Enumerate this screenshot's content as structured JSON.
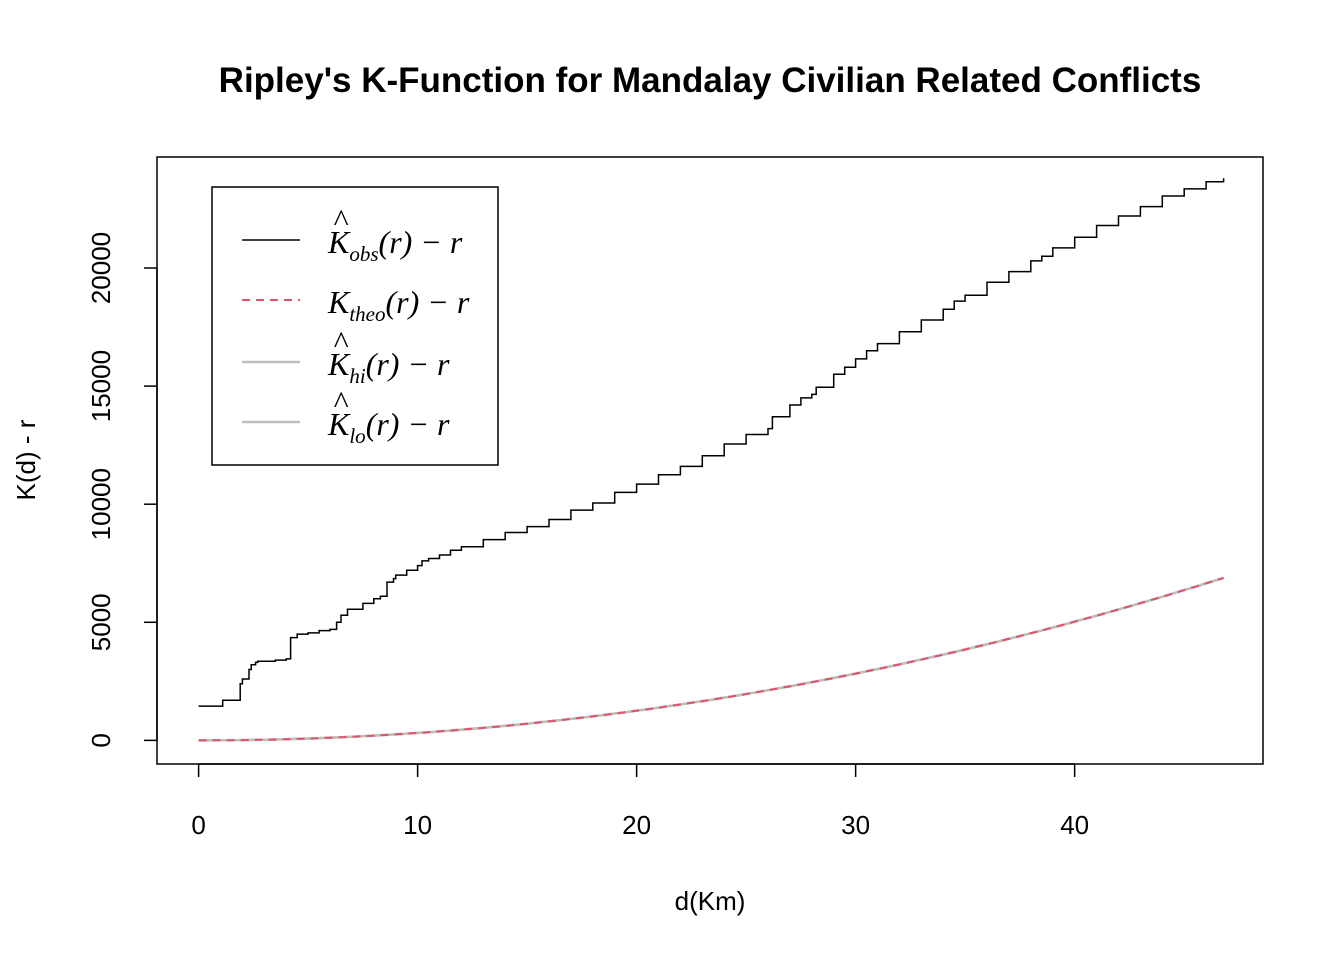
{
  "chart_data": {
    "type": "line",
    "title": "Ripley's K-Function for Mandalay Civilian Related Conflicts",
    "xlabel": "d(Km)",
    "ylabel": "K(d) - r",
    "xlim": [
      -1.9,
      48.6
    ],
    "ylim": [
      -1000,
      24700
    ],
    "x_ticks": [
      0,
      10,
      20,
      30,
      40
    ],
    "y_ticks": [
      0,
      5000,
      10000,
      15000,
      20000
    ],
    "grid": false,
    "legend_position": "top-left",
    "colors": {
      "obs": "#000000",
      "theo": "#DF536B",
      "hi": "#BEBEBE",
      "lo": "#BEBEBE"
    },
    "legend": [
      {
        "key": "obs",
        "main": "K",
        "hat": true,
        "sub": "obs",
        "suffix": "(r) − r",
        "style": "solid"
      },
      {
        "key": "theo",
        "main": "K",
        "hat": false,
        "sub": "theo",
        "suffix": "(r) − r",
        "style": "dashed"
      },
      {
        "key": "hi",
        "main": "K",
        "hat": true,
        "sub": "hi",
        "suffix": "(r) − r",
        "style": "solid"
      },
      {
        "key": "lo",
        "main": "K",
        "hat": true,
        "sub": "lo",
        "suffix": "(r) − r",
        "style": "solid"
      }
    ],
    "series": [
      {
        "key": "obs",
        "x": [
          0,
          0.5,
          1,
          1.1,
          1.5,
          1.8,
          1.9,
          2.0,
          2.1,
          2.3,
          2.4,
          2.6,
          2.7,
          3.0,
          3.5,
          4.0,
          4.2,
          4.5,
          4.7,
          5.0,
          5.5,
          6.0,
          6.3,
          6.5,
          6.8,
          7.0,
          7.5,
          8.0,
          8.3,
          8.6,
          8.9,
          9.0,
          9.5,
          10.0,
          10.2,
          10.5,
          11,
          11.5,
          12,
          13,
          14,
          15,
          16,
          17,
          18,
          19,
          20,
          21,
          22,
          23,
          24,
          25,
          26,
          26.2,
          27,
          27.5,
          28,
          28.2,
          29,
          29.5,
          30,
          30.5,
          31,
          32,
          33,
          34,
          34.5,
          35,
          36,
          37,
          38,
          38.5,
          39,
          40,
          41,
          42,
          43,
          44,
          45,
          46,
          46.8
        ],
        "y": [
          1450,
          1450,
          1450,
          1700,
          1700,
          1700,
          2400,
          2600,
          2600,
          3000,
          3200,
          3300,
          3350,
          3350,
          3400,
          3450,
          4350,
          4500,
          4500,
          4550,
          4650,
          4700,
          5000,
          5300,
          5550,
          5550,
          5800,
          6000,
          6100,
          6700,
          6850,
          7000,
          7200,
          7400,
          7600,
          7700,
          7850,
          8050,
          8200,
          8500,
          8800,
          9050,
          9350,
          9750,
          10050,
          10500,
          10850,
          11250,
          11600,
          12050,
          12550,
          12950,
          13200,
          13700,
          14200,
          14500,
          14650,
          14950,
          15500,
          15800,
          16150,
          16500,
          16800,
          17300,
          17800,
          18250,
          18600,
          18850,
          19400,
          19850,
          20300,
          20500,
          20850,
          21300,
          21800,
          22200,
          22600,
          23050,
          23350,
          23650,
          23800
        ]
      },
      {
        "key": "theo",
        "formula": "3.1416*x^2",
        "note": "theoretical CSR curve, plotted from 0 to 46.8",
        "x_range": [
          0,
          46.8
        ]
      },
      {
        "key": "hi",
        "formula": "3.1416*x^2",
        "x_range": [
          0,
          46.8
        ]
      },
      {
        "key": "lo",
        "formula": "3.1416*x^2",
        "x_range": [
          0,
          46.8
        ]
      }
    ]
  }
}
